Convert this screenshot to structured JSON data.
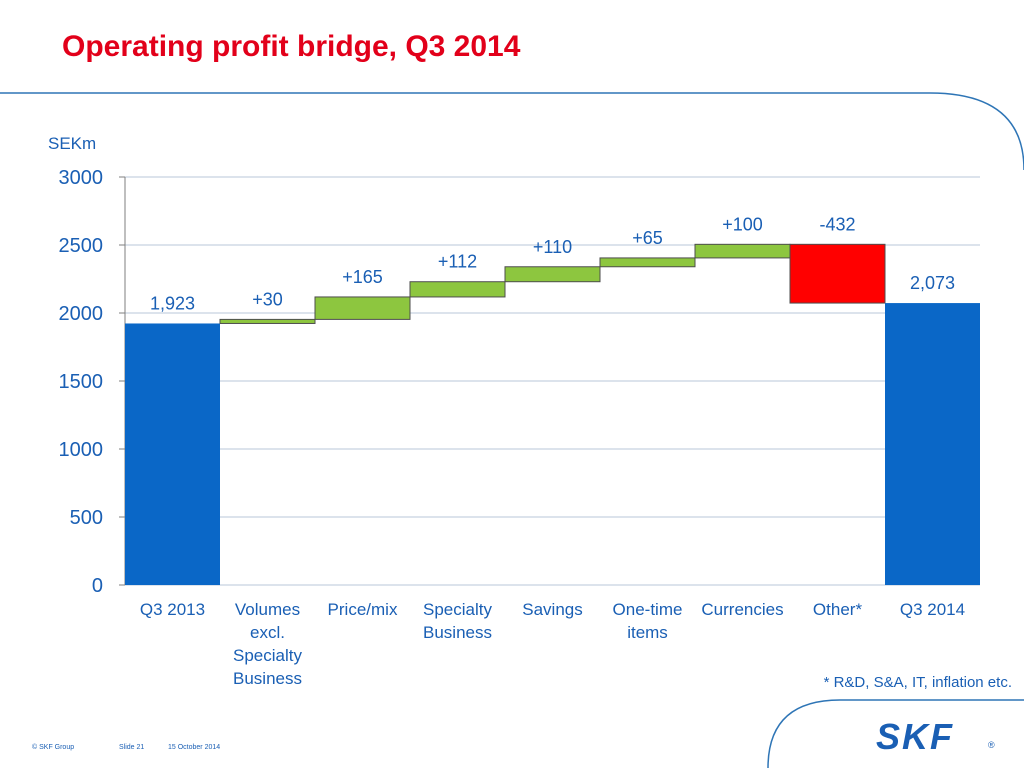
{
  "slide": {
    "title": "Operating profit bridge, Q3 2014",
    "unit": "SEKm",
    "footnote": "* R&D, S&A, IT, inflation etc.",
    "copyright": "© SKF Group",
    "slide_no": "Slide 21",
    "date": "15 October 2014",
    "logo": "SKF",
    "logo_mark": "®"
  },
  "colors": {
    "title": "#e2001a",
    "text": "#1a5fb4",
    "total_bar": "#0a67c7",
    "increase_bar": "#8dc63f",
    "decrease_bar": "#ff0000",
    "grid": "#b8c7d9",
    "frame": "#2e75b6"
  },
  "chart_data": {
    "type": "waterfall",
    "categories": [
      "Q3 2013",
      "Volumes\nexcl.\nSpecialty\nBusiness",
      "Price/mix",
      "Specialty\nBusiness",
      "Savings",
      "One-time\nitems",
      "Currencies",
      "Other*",
      "Q3 2014"
    ],
    "values": [
      1923,
      30,
      165,
      112,
      110,
      65,
      100,
      -432,
      2073
    ],
    "kinds": [
      "total",
      "delta",
      "delta",
      "delta",
      "delta",
      "delta",
      "delta",
      "delta",
      "total"
    ],
    "data_labels": [
      "1,923",
      "+30",
      "+165",
      "+112",
      "+110",
      "+65",
      "+100",
      "-432",
      "2,073"
    ],
    "ylim": [
      0,
      3000
    ],
    "yticks": [
      0,
      500,
      1000,
      1500,
      2000,
      2500,
      3000
    ],
    "ylabel": "SEKm",
    "grid": true
  }
}
